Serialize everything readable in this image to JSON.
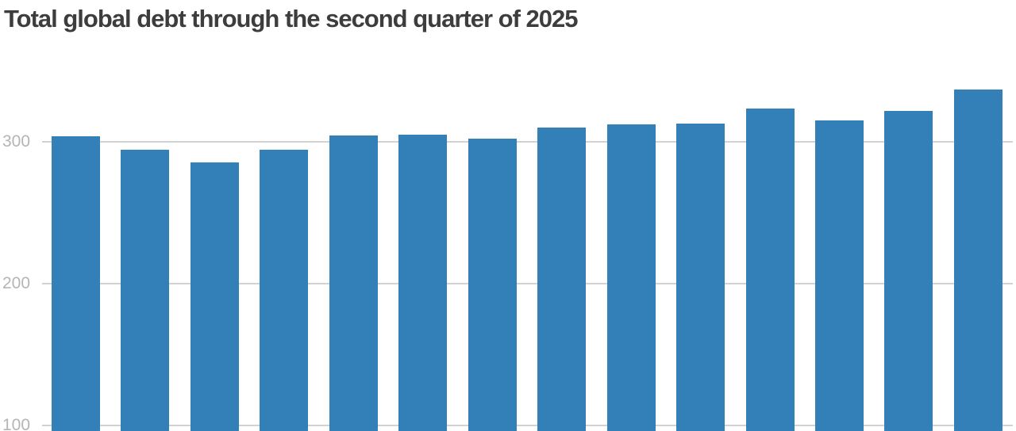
{
  "header": {
    "title": "Total global debt through the second quarter of 2025"
  },
  "chart_data": {
    "type": "bar",
    "title": "Total global debt through the second quarter of 2025",
    "values": [
      304,
      294.5,
      285.5,
      294.5,
      304.5,
      305,
      302,
      310,
      312.5,
      313,
      323.5,
      315,
      322,
      337
    ],
    "bar_count": 14,
    "yticks": [
      300,
      200,
      100
    ],
    "xlabel": "",
    "ylabel": "",
    "x_axis_labels_visible": false,
    "chart_cropped_at_bottom": true,
    "grid": "horizontal",
    "legend": "none",
    "bar_color": "#3380b8",
    "gridline_color": "#d2d2d2",
    "tick_label_color": "#b5b5b5",
    "title_color": "#3d3d3d",
    "background_color": "#ffffff"
  }
}
